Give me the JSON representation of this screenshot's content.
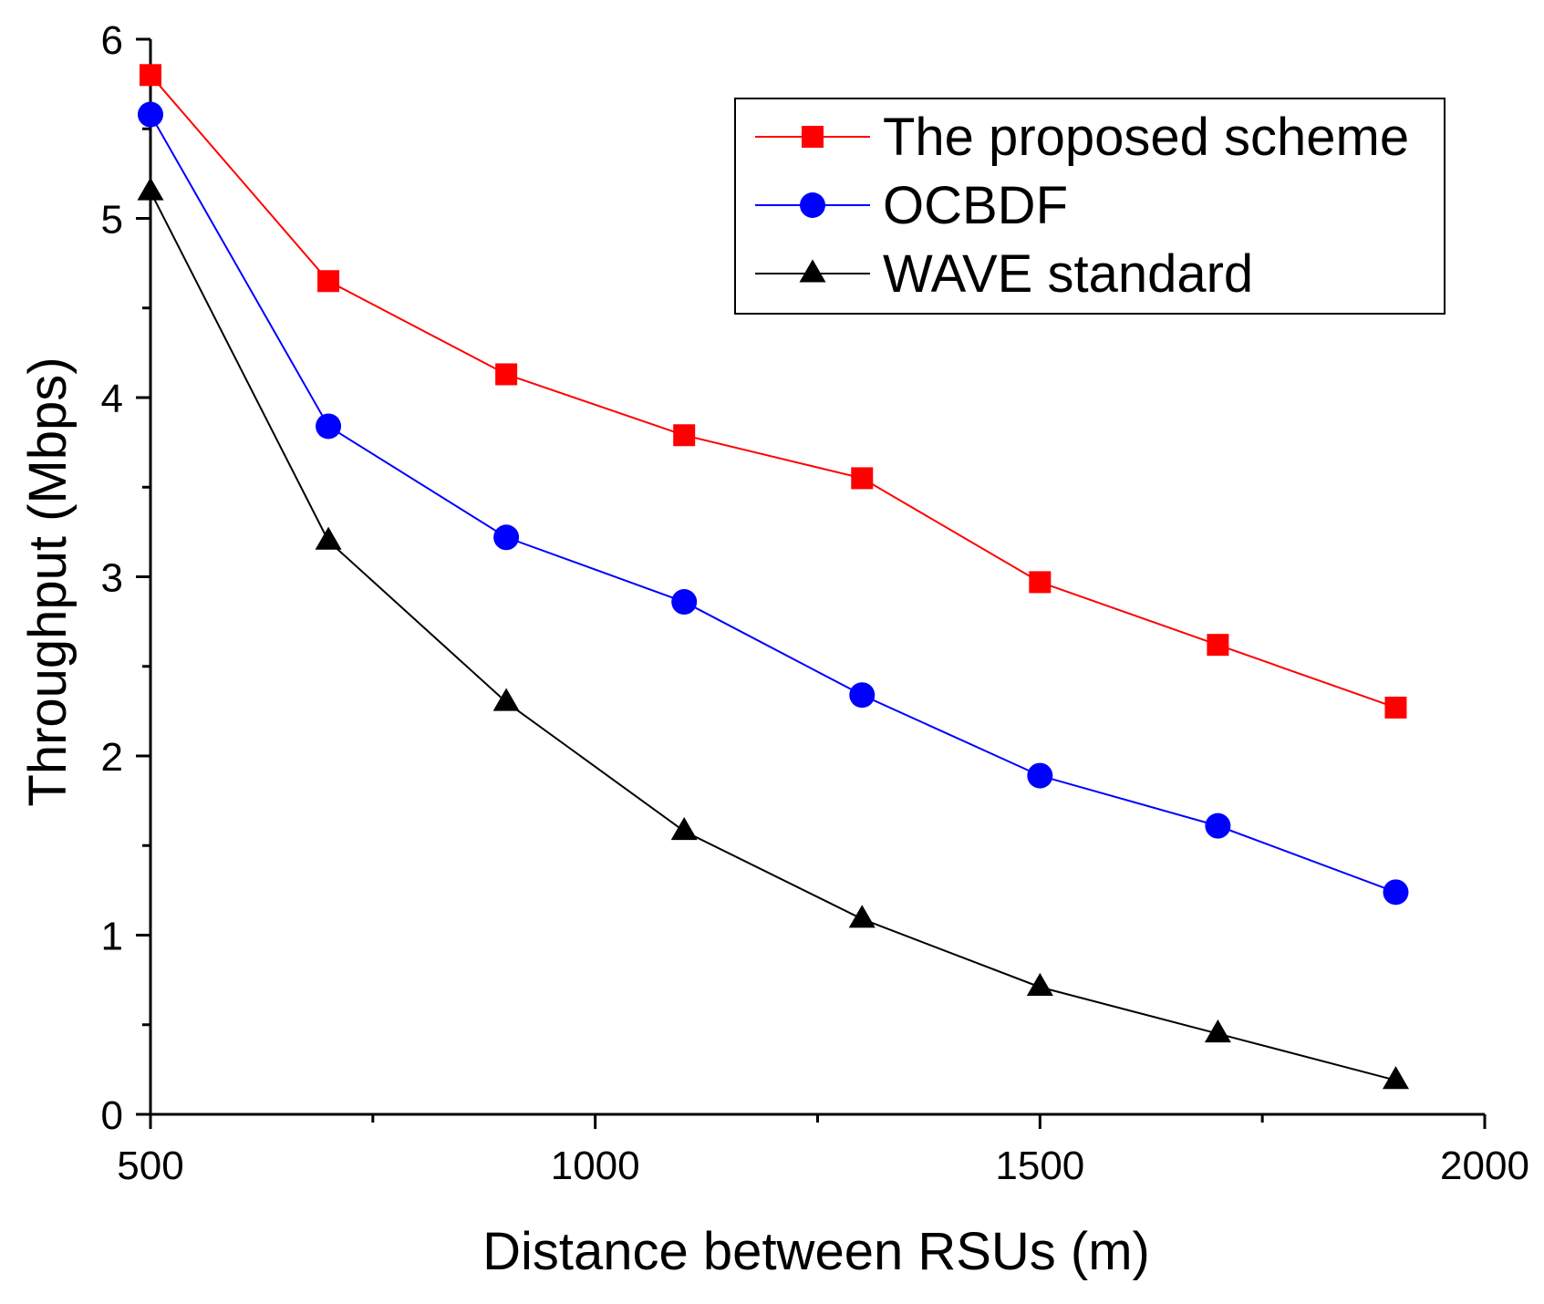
{
  "chart_data": {
    "type": "line",
    "title": "",
    "xlabel": "Distance between RSUs (m)",
    "ylabel": "Throughput (Mbps)",
    "xlim": [
      500,
      2000
    ],
    "ylim": [
      0,
      6
    ],
    "x_ticks": [
      500,
      1000,
      1500,
      2000
    ],
    "x_minor_step": 250,
    "y_ticks": [
      0,
      1,
      2,
      3,
      4,
      5,
      6
    ],
    "y_minor_step": 0.5,
    "grid": false,
    "legend_position": "top-right",
    "x": [
      500,
      700,
      900,
      1100,
      1300,
      1500,
      1700,
      1900
    ],
    "series": [
      {
        "name": "The proposed scheme",
        "color": "#ff0000",
        "marker": "square",
        "values": [
          5.8,
          4.65,
          4.13,
          3.79,
          3.55,
          2.97,
          2.62,
          2.27
        ]
      },
      {
        "name": "OCBDF",
        "color": "#0000ff",
        "marker": "circle",
        "values": [
          5.58,
          3.84,
          3.22,
          2.86,
          2.34,
          1.89,
          1.61,
          1.24
        ]
      },
      {
        "name": "WAVE standard",
        "color": "#000000",
        "marker": "triangle",
        "values": [
          5.15,
          3.2,
          2.3,
          1.58,
          1.09,
          0.71,
          0.45,
          0.19
        ]
      }
    ]
  }
}
